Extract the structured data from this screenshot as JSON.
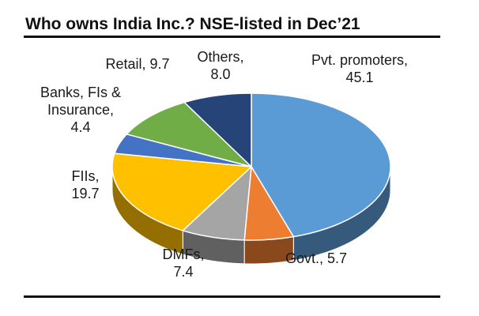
{
  "title": "Who owns India Inc.? NSE-listed in Dec’21",
  "chart_data": {
    "type": "pie",
    "title": "Who owns India Inc.? NSE-listed in Dec’21",
    "style": "3d-tilted",
    "start": "12 o'clock",
    "direction": "clockwise",
    "slices": [
      {
        "name": "Pvt. promoters",
        "value": 45.1,
        "color": "#5b9bd5",
        "label_lines": [
          "Pvt. promoters,",
          "45.1"
        ]
      },
      {
        "name": "Govt.",
        "value": 5.7,
        "color": "#ed7d31",
        "label_lines": [
          "Govt.,  5.7"
        ]
      },
      {
        "name": "DMFs",
        "value": 7.4,
        "color": "#a5a5a5",
        "label_lines": [
          "DMFs,",
          "7.4"
        ]
      },
      {
        "name": "FIIs",
        "value": 19.7,
        "color": "#ffc000",
        "label_lines": [
          "FIIs,",
          "19.7"
        ]
      },
      {
        "name": "Banks, FIs & Insurance",
        "value": 4.4,
        "color": "#4472c4",
        "label_lines": [
          "Banks, FIs &",
          "Insurance,",
          "4.4"
        ]
      },
      {
        "name": "Retail",
        "value": 9.7,
        "color": "#70ad47",
        "label_lines": [
          "Retail,  9.7"
        ]
      },
      {
        "name": "Others",
        "value": 8.0,
        "color": "#264478",
        "label_lines": [
          "Others,",
          "8.0"
        ]
      }
    ]
  }
}
